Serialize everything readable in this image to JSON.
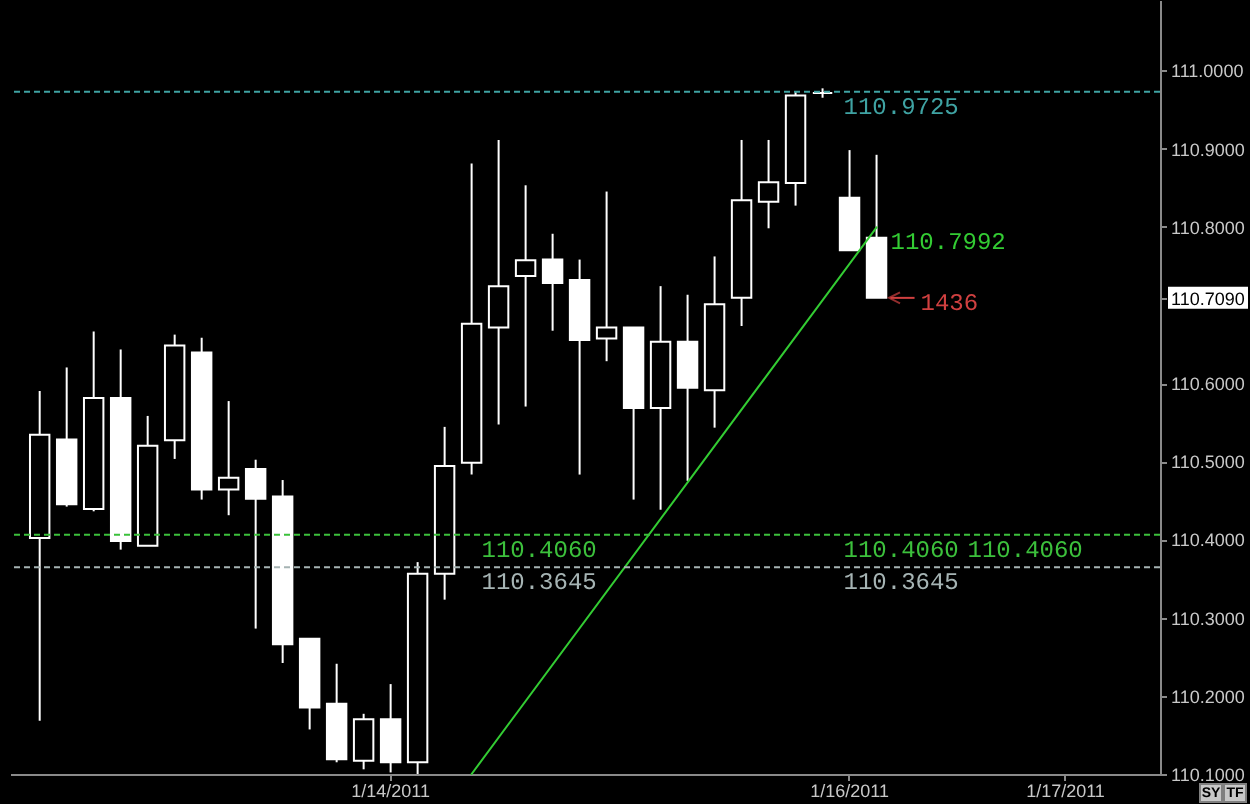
{
  "chart_data": {
    "type": "candlestick",
    "categories": [
      null,
      null,
      null,
      null,
      null,
      null,
      null,
      null,
      null,
      null,
      null,
      null,
      null,
      "1/14/2011",
      null,
      null,
      null,
      null,
      null,
      null,
      null,
      null,
      null,
      null,
      null,
      null,
      null,
      null,
      null,
      null,
      "1/16/2011",
      null,
      null,
      null,
      null,
      null,
      null,
      null,
      "1/17/2011",
      null,
      null,
      null
    ],
    "ohlc": [
      [
        110.402,
        110.59,
        110.168,
        110.534
      ],
      [
        110.528,
        110.62,
        110.442,
        110.445
      ],
      [
        110.439,
        110.666,
        110.436,
        110.581
      ],
      [
        110.581,
        110.643,
        110.387,
        110.398
      ],
      [
        110.392,
        110.558,
        110.392,
        110.52
      ],
      [
        110.527,
        110.662,
        110.503,
        110.648
      ],
      [
        110.639,
        110.658,
        110.451,
        110.464
      ],
      [
        110.464,
        110.577,
        110.431,
        110.479
      ],
      [
        110.49,
        110.502,
        110.286,
        110.452
      ],
      [
        110.455,
        110.476,
        110.242,
        110.266
      ],
      [
        110.273,
        110.273,
        110.157,
        110.185
      ],
      [
        110.19,
        110.241,
        110.115,
        110.119
      ],
      [
        110.117,
        110.177,
        110.106,
        110.17
      ],
      [
        110.17,
        110.215,
        110.102,
        110.115
      ],
      [
        110.115,
        110.371,
        110.1,
        110.356
      ],
      [
        110.356,
        110.544,
        110.323,
        110.494
      ],
      [
        110.498,
        110.881,
        110.483,
        110.676
      ],
      [
        110.671,
        110.911,
        110.547,
        110.724
      ],
      [
        110.737,
        110.853,
        110.57,
        110.757
      ],
      [
        110.758,
        110.791,
        110.667,
        110.728
      ],
      [
        110.732,
        110.758,
        110.483,
        110.655
      ],
      [
        110.657,
        110.845,
        110.628,
        110.671
      ],
      [
        110.671,
        110.671,
        110.451,
        110.568
      ],
      [
        110.568,
        110.724,
        110.438,
        110.653
      ],
      [
        110.653,
        110.713,
        110.475,
        110.594
      ],
      [
        110.591,
        110.762,
        110.543,
        110.701
      ],
      [
        110.709,
        110.911,
        110.673,
        110.834
      ],
      [
        110.832,
        110.911,
        110.798,
        110.857
      ],
      [
        110.856,
        110.973,
        110.827,
        110.968
      ],
      [
        110.971,
        110.977,
        110.965,
        110.971
      ],
      [
        110.837,
        110.898,
        110.77,
        110.77
      ],
      [
        110.786,
        110.892,
        110.709,
        110.709
      ],
      null,
      null,
      null,
      null,
      null,
      null,
      null,
      null,
      null,
      null
    ],
    "color": "#ffffff",
    "series": [
      {
        "type": "line",
        "color": "#33cc33",
        "values": [
          null,
          null,
          null,
          null,
          null,
          null,
          null,
          null,
          null,
          null,
          null,
          null,
          null,
          null,
          null,
          null,
          110.1,
          null,
          null,
          null,
          null,
          null,
          null,
          null,
          null,
          null,
          null,
          null,
          null,
          null,
          null,
          110.7992,
          null,
          null,
          null,
          null,
          null,
          null,
          null,
          null,
          null,
          null
        ],
        "value_labels": [
          null,
          null,
          null,
          null,
          null,
          null,
          null,
          null,
          null,
          null,
          null,
          null,
          null,
          null,
          null,
          null,
          null,
          null,
          null,
          null,
          null,
          null,
          null,
          null,
          null,
          null,
          null,
          null,
          null,
          null,
          null,
          "110.7992",
          null,
          null,
          null,
          null,
          null,
          null,
          null,
          null,
          null,
          null
        ]
      }
    ],
    "ylim": [
      110.1,
      111.09
    ],
    "yticks": [
      {
        "value": 110.1,
        "label": "110.1000"
      },
      {
        "value": 110.2,
        "label": "110.2000"
      },
      {
        "value": 110.3,
        "label": "110.3000"
      },
      {
        "value": 110.4,
        "label": "110.4000"
      },
      {
        "value": 110.5,
        "label": "110.5000"
      },
      {
        "value": 110.6,
        "label": "110.6000"
      },
      {
        "value": 110.709,
        "label": "110.7090"
      },
      {
        "value": 110.8,
        "label": "110.8000"
      },
      {
        "value": 110.9,
        "label": "110.9000"
      },
      {
        "value": 111.0,
        "label": "111.0000"
      }
    ],
    "ref_lines": [
      {
        "axis": "y",
        "value": 110.9725,
        "label": "110.9725",
        "color": "#3fa3a3",
        "line_style": "dashed"
      },
      {
        "axis": "y",
        "value": 110.406,
        "label": "110.4060",
        "color": "#3cc03c",
        "line_style": "dashed"
      },
      {
        "axis": "y",
        "value": 110.3645,
        "label": "110.3645",
        "color": "#a6b4b4",
        "line_style": "dashed"
      }
    ],
    "annotations": [
      "110.4060",
      "110.4060",
      "110.3645",
      "1436",
      "SY",
      "TF"
    ]
  }
}
